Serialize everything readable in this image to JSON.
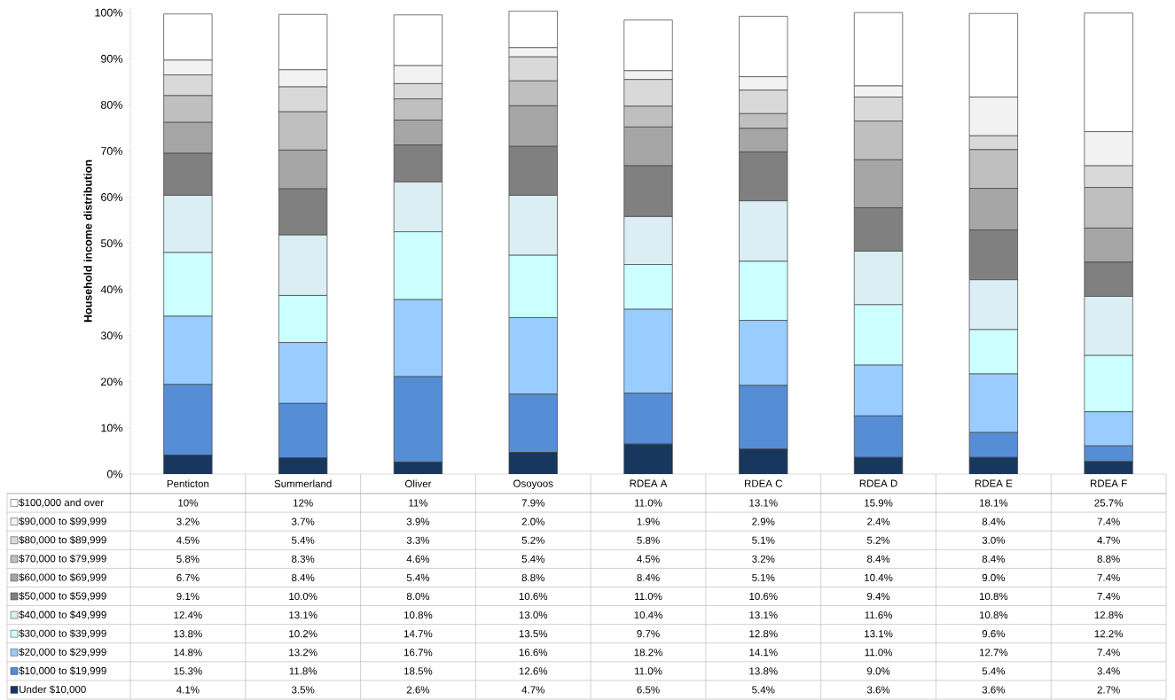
{
  "chart_data": {
    "type": "bar",
    "stacked": true,
    "ylabel": "Household income distribution",
    "legend": "bottom",
    "categories": [
      "Penticton",
      "Summerland",
      "Oliver",
      "Osoyoos",
      "RDEA A",
      "RDEA C",
      "RDEA D",
      "RDEA E",
      "RDEA F"
    ],
    "ylim": [
      0,
      101
    ],
    "yticks": [
      {
        "value": 0,
        "label": "0%"
      },
      {
        "value": 10,
        "label": "10%"
      },
      {
        "value": 20,
        "label": "20%"
      },
      {
        "value": 30,
        "label": "30%"
      },
      {
        "value": 40,
        "label": "40%"
      },
      {
        "value": 50,
        "label": "50%"
      },
      {
        "value": 60,
        "label": "60%"
      },
      {
        "value": 70,
        "label": "70%"
      },
      {
        "value": 80,
        "label": "80%"
      },
      {
        "value": 90,
        "label": "90%"
      },
      {
        "value": 100,
        "label": "100%"
      }
    ],
    "series": [
      {
        "name": "Under $10,000",
        "color": "#17375e",
        "values": [
          4.1,
          3.5,
          2.6,
          4.7,
          6.5,
          5.4,
          3.6,
          3.6,
          2.7
        ],
        "value_labels": [
          "4.1%",
          "3.5%",
          "2.6%",
          "4.7%",
          "6.5%",
          "5.4%",
          "3.6%",
          "3.6%",
          "2.7%"
        ]
      },
      {
        "name": "$10,000 to $19,999",
        "color": "#558ed5",
        "values": [
          15.3,
          11.8,
          18.5,
          12.6,
          11.0,
          13.8,
          9.0,
          5.4,
          3.4
        ],
        "value_labels": [
          "15.3%",
          "11.8%",
          "18.5%",
          "12.6%",
          "11.0%",
          "13.8%",
          "9.0%",
          "5.4%",
          "3.4%"
        ]
      },
      {
        "name": "$20,000 to $29,999",
        "color": "#99ccff",
        "values": [
          14.8,
          13.2,
          16.7,
          16.6,
          18.2,
          14.1,
          11.0,
          12.7,
          7.4
        ],
        "value_labels": [
          "14.8%",
          "13.2%",
          "16.7%",
          "16.6%",
          "18.2%",
          "14.1%",
          "11.0%",
          "12.7%",
          "7.4%"
        ]
      },
      {
        "name": "$30,000 to $39,999",
        "color": "#ccffff",
        "values": [
          13.8,
          10.2,
          14.7,
          13.5,
          9.7,
          12.8,
          13.1,
          9.6,
          12.2
        ],
        "value_labels": [
          "13.8%",
          "10.2%",
          "14.7%",
          "13.5%",
          "9.7%",
          "12.8%",
          "13.1%",
          "9.6%",
          "12.2%"
        ]
      },
      {
        "name": "$40,000 to $49,999",
        "color": "#daeef3",
        "values": [
          12.4,
          13.1,
          10.8,
          13.0,
          10.4,
          13.1,
          11.6,
          10.8,
          12.8
        ],
        "value_labels": [
          "12.4%",
          "13.1%",
          "10.8%",
          "13.0%",
          "10.4%",
          "13.1%",
          "11.6%",
          "10.8%",
          "12.8%"
        ]
      },
      {
        "name": "$50,000 to $59,999",
        "color": "#808080",
        "values": [
          9.1,
          10.0,
          8.0,
          10.6,
          11.0,
          10.6,
          9.4,
          10.8,
          7.4
        ],
        "value_labels": [
          "9.1%",
          "10.0%",
          "8.0%",
          "10.6%",
          "11.0%",
          "10.6%",
          "9.4%",
          "10.8%",
          "7.4%"
        ]
      },
      {
        "name": "$60,000 to $69,999",
        "color": "#a6a6a6",
        "values": [
          6.7,
          8.4,
          5.4,
          8.8,
          8.4,
          5.1,
          10.4,
          9.0,
          7.4
        ],
        "value_labels": [
          "6.7%",
          "8.4%",
          "5.4%",
          "8.8%",
          "8.4%",
          "5.1%",
          "10.4%",
          "9.0%",
          "7.4%"
        ]
      },
      {
        "name": "$70,000 to $79,999",
        "color": "#bfbfbf",
        "values": [
          5.8,
          8.3,
          4.6,
          5.4,
          4.5,
          3.2,
          8.4,
          8.4,
          8.8
        ],
        "value_labels": [
          "5.8%",
          "8.3%",
          "4.6%",
          "5.4%",
          "4.5%",
          "3.2%",
          "8.4%",
          "8.4%",
          "8.8%"
        ]
      },
      {
        "name": "$80,000 to $89,999",
        "color": "#d9d9d9",
        "values": [
          4.5,
          5.4,
          3.3,
          5.2,
          5.8,
          5.1,
          5.2,
          3.0,
          4.7
        ],
        "value_labels": [
          "4.5%",
          "5.4%",
          "3.3%",
          "5.2%",
          "5.8%",
          "5.1%",
          "5.2%",
          "3.0%",
          "4.7%"
        ]
      },
      {
        "name": "$90,000 to $99,999",
        "color": "#f2f2f2",
        "values": [
          3.2,
          3.7,
          3.9,
          2.0,
          1.9,
          2.9,
          2.4,
          8.4,
          7.4
        ],
        "value_labels": [
          "3.2%",
          "3.7%",
          "3.9%",
          "2.0%",
          "1.9%",
          "2.9%",
          "2.4%",
          "8.4%",
          "7.4%"
        ]
      },
      {
        "name": "$100,000 and over",
        "color": "#ffffff",
        "values": [
          10,
          12,
          11,
          7.9,
          11.0,
          13.1,
          15.9,
          18.1,
          25.7
        ],
        "value_labels": [
          "10%",
          "12%",
          "11%",
          "7.9%",
          "11.0%",
          "13.1%",
          "15.9%",
          "18.1%",
          "25.7%"
        ]
      }
    ]
  }
}
